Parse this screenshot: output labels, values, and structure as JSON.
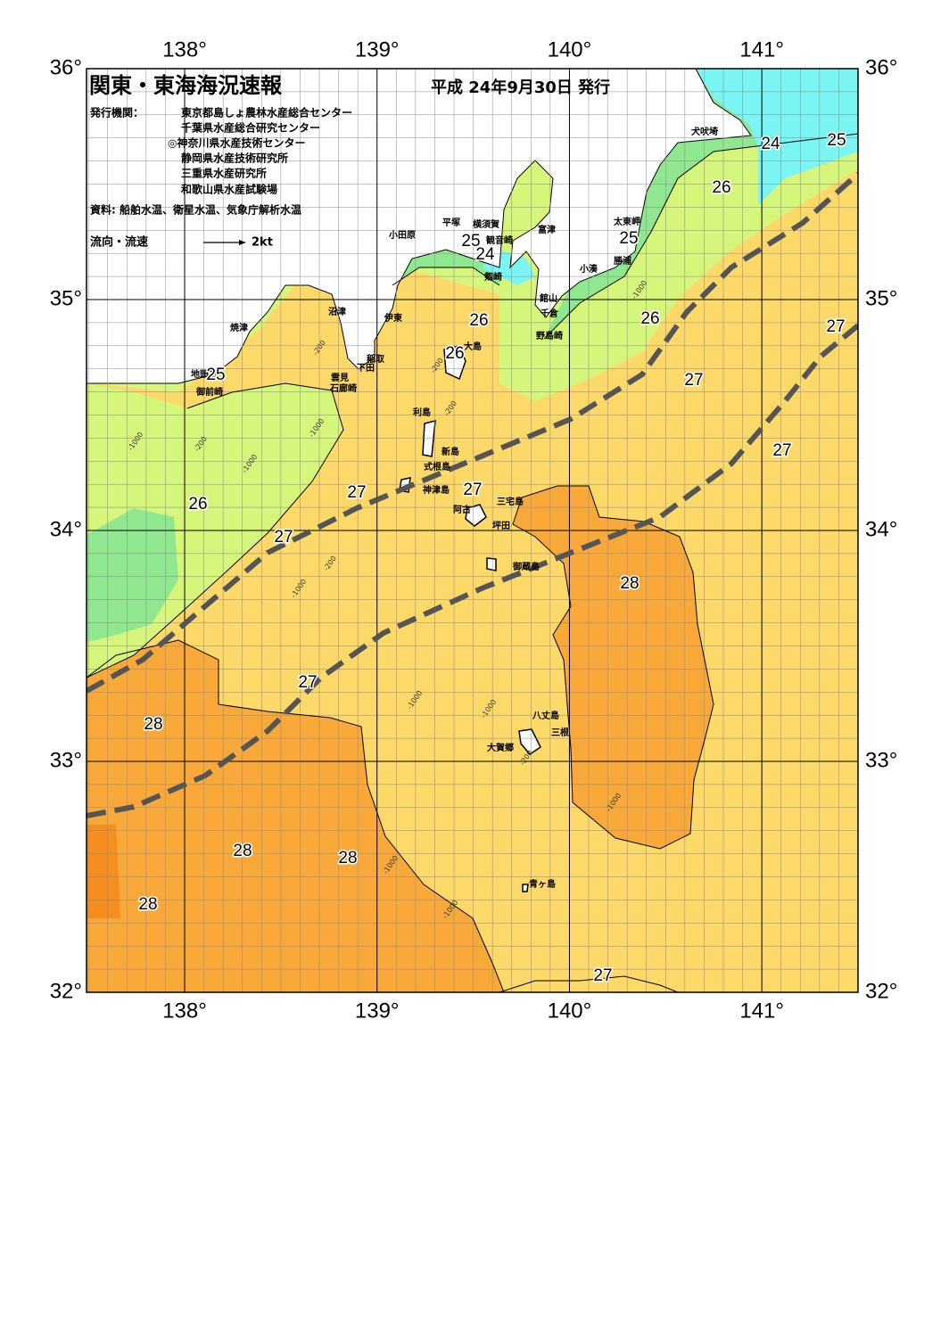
{
  "header": {
    "title": "関東・東海海況速報",
    "date": "平成 24年9月30日 発行",
    "issuer_label": "発行機関：",
    "issuers": [
      "東京都島しょ農林水産総合センター",
      "千葉県水産総合研究センター",
      "◎神奈川県水産技術センター",
      "静岡県水産技術研究所",
      "三重県水産研究所",
      "和歌山県水産試験場"
    ],
    "sources": "資料: 船舶水温、衛星水温、気象庁解析水温",
    "legend_label": "流向・流速",
    "legend_scale": "2kt"
  },
  "map": {
    "lonlim": [
      137.49,
      141.5
    ],
    "latlim": [
      32,
      36
    ],
    "lon_ticks": [
      {
        "value": 138,
        "label": "138°"
      },
      {
        "value": 139,
        "label": "139°"
      },
      {
        "value": 140,
        "label": "140°"
      },
      {
        "value": 141,
        "label": "141°"
      }
    ],
    "lat_ticks": [
      {
        "value": 32,
        "label": "32°"
      },
      {
        "value": 33,
        "label": "33°"
      },
      {
        "value": 34,
        "label": "34°"
      },
      {
        "value": 35,
        "label": "35°"
      },
      {
        "value": 36,
        "label": "36°"
      }
    ],
    "places": [
      "犬吠埼",
      "太東岬",
      "勝浦",
      "小湊",
      "館山",
      "千倉",
      "野島崎",
      "富津",
      "横須賀",
      "観音崎",
      "剱崎",
      "平塚",
      "小田原",
      "大島",
      "沼津",
      "伊東",
      "焼津",
      "稲取",
      "下田",
      "雲見",
      "石廊崎",
      "地頭方",
      "御前崎",
      "利島",
      "新島",
      "式根島",
      "神津島",
      "三宅島",
      "阿古",
      "坪田",
      "御蔵島",
      "八丈島",
      "三根",
      "大賀郷",
      "青ヶ島"
    ],
    "isotherm_labels": [
      "24",
      "25",
      "26",
      "25",
      "26",
      "26",
      "27",
      "27",
      "27",
      "27",
      "27",
      "26",
      "27",
      "28",
      "27",
      "28",
      "28",
      "28",
      "28",
      "27",
      "25",
      "24",
      "25",
      "26"
    ],
    "depth_labels": [
      "-1000",
      "-200",
      "-1000",
      "-1000",
      "-200",
      "-1000",
      "-200",
      "-1000",
      "-1000",
      "-1000",
      "-200",
      "-1000",
      "-1000",
      "-1000",
      "-200",
      "-200"
    ]
  }
}
